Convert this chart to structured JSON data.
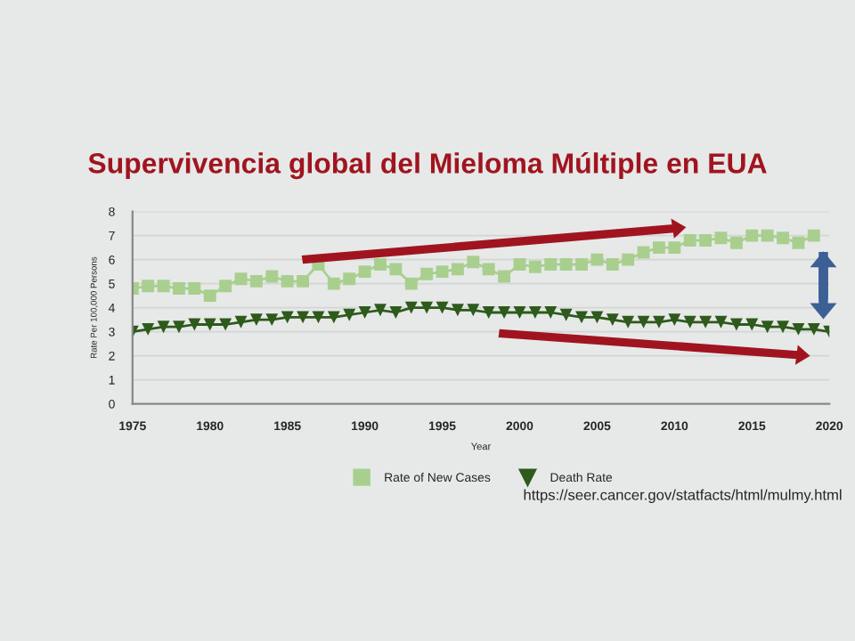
{
  "chart_data": {
    "type": "line",
    "title": "Supervivencia global del Mieloma Múltiple en EUA",
    "xlabel": "Year",
    "ylabel": "Rate Per 100,000 Persons",
    "annotations": [
      "https://seer.cancer.gov/statfacts/html/mulmy.html"
    ],
    "series": [
      {
        "name": "Rate of New Cases",
        "color": "#a9cf8f",
        "marker": "square",
        "x": [
          1975,
          1976,
          1977,
          1978,
          1979,
          1980,
          1981,
          1982,
          1983,
          1984,
          1985,
          1986,
          1987,
          1988,
          1989,
          1990,
          1991,
          1992,
          1993,
          1994,
          1995,
          1996,
          1997,
          1998,
          1999,
          2000,
          2001,
          2002,
          2003,
          2004,
          2005,
          2006,
          2007,
          2008,
          2009,
          2010,
          2011,
          2012,
          2013,
          2014,
          2015,
          2016,
          2017,
          2018,
          2019
        ],
        "values": [
          4.8,
          4.9,
          4.9,
          4.8,
          4.8,
          4.5,
          4.9,
          5.2,
          5.1,
          5.3,
          5.1,
          5.1,
          5.8,
          5.0,
          5.2,
          5.5,
          5.8,
          5.6,
          5.0,
          5.4,
          5.5,
          5.6,
          5.9,
          5.6,
          5.3,
          5.8,
          5.7,
          5.8,
          5.8,
          5.8,
          6.0,
          5.8,
          6.0,
          6.3,
          6.5,
          6.5,
          6.8,
          6.8,
          6.9,
          6.7,
          7.0,
          7.0,
          6.9,
          6.7,
          7.0
        ]
      },
      {
        "name": "Death Rate",
        "color": "#2e5a1c",
        "marker": "triangle",
        "x": [
          1975,
          1976,
          1977,
          1978,
          1979,
          1980,
          1981,
          1982,
          1983,
          1984,
          1985,
          1986,
          1987,
          1988,
          1989,
          1990,
          1991,
          1992,
          1993,
          1994,
          1995,
          1996,
          1997,
          1998,
          1999,
          2000,
          2001,
          2002,
          2003,
          2004,
          2005,
          2006,
          2007,
          2008,
          2009,
          2010,
          2011,
          2012,
          2013,
          2014,
          2015,
          2016,
          2017,
          2018,
          2019,
          2020
        ],
        "values": [
          3.0,
          3.1,
          3.2,
          3.2,
          3.3,
          3.3,
          3.3,
          3.4,
          3.5,
          3.5,
          3.6,
          3.6,
          3.6,
          3.6,
          3.7,
          3.8,
          3.9,
          3.8,
          4.0,
          4.0,
          4.0,
          3.9,
          3.9,
          3.8,
          3.8,
          3.8,
          3.8,
          3.8,
          3.7,
          3.6,
          3.6,
          3.5,
          3.4,
          3.4,
          3.4,
          3.5,
          3.4,
          3.4,
          3.4,
          3.3,
          3.3,
          3.2,
          3.2,
          3.1,
          3.1,
          3.0
        ]
      }
    ],
    "xlim": [
      1975,
      2020
    ],
    "xticks": [
      1975,
      1980,
      1985,
      1990,
      1995,
      2000,
      2005,
      2010,
      2015,
      2020
    ],
    "ylim": [
      0,
      8
    ],
    "yticks": [
      0,
      1,
      2,
      3,
      4,
      5,
      6,
      7,
      8
    ],
    "grid": "y",
    "legend": "bottom"
  }
}
